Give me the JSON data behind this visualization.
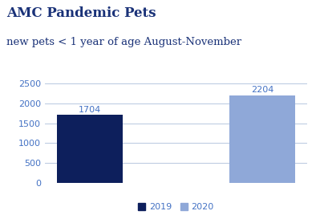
{
  "title": "AMC Pandemic Pets",
  "subtitle": "new pets < 1 year of age August-November",
  "categories": [
    "2019",
    "2020"
  ],
  "values": [
    1704,
    2204
  ],
  "bar_colors": [
    "#0d1f5c",
    "#8fa8d8"
  ],
  "label_color": "#4472c4",
  "tick_color": "#4472c4",
  "grid_color": "#b8c8e0",
  "title_color": "#1a3278",
  "background_color": "#ffffff",
  "ylim": [
    0,
    2600
  ],
  "yticks": [
    0,
    500,
    1000,
    1500,
    2000,
    2500
  ],
  "title_fontsize": 12,
  "subtitle_fontsize": 9.5,
  "bar_label_fontsize": 8,
  "tick_fontsize": 8,
  "legend_fontsize": 8,
  "bar_width": 0.38
}
